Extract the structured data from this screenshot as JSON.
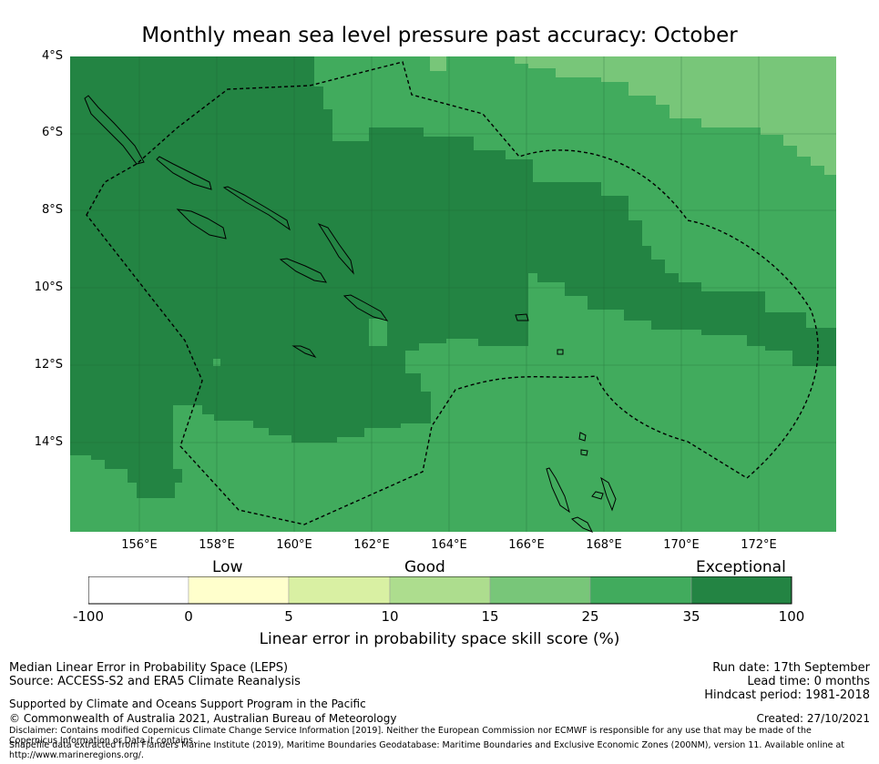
{
  "title": "Monthly mean sea level pressure past accuracy: October",
  "map": {
    "lat_labels": [
      "4°S",
      "6°S",
      "8°S",
      "10°S",
      "12°S",
      "14°S"
    ],
    "lon_labels": [
      "156°E",
      "158°E",
      "160°E",
      "162°E",
      "164°E",
      "166°E",
      "168°E",
      "170°E",
      "172°E"
    ],
    "extent": {
      "lon_min": 154.2,
      "lon_max": 174.0,
      "lat_min": -16.5,
      "lat_max": -4.0
    }
  },
  "legend": {
    "categories": [
      "Low",
      "Good",
      "Exceptional"
    ],
    "ticks": [
      "-100",
      "0",
      "5",
      "10",
      "15",
      "25",
      "35",
      "100"
    ],
    "colors": [
      "#ffffff",
      "#ffffcc",
      "#d9f0a3",
      "#addd8e",
      "#78c679",
      "#41ab5d",
      "#238443"
    ],
    "title": "Linear error in probability space skill score (%)"
  },
  "footer": {
    "line1": "Median Linear Error in Probability Space (LEPS)",
    "line2": "Source: ACCESS-S2 and ERA5 Climate Reanalysis",
    "line3": "Supported by Climate and Oceans Support Program in the Pacific",
    "line4": "© Commonwealth of Australia 2021, Australian Bureau of Meteorology",
    "disclaimer": "Disclaimer: Contains modified Copernicus Climate Change Service Information [2019]. Neither the European Commission nor ECMWF is responsible for any use that may be made of the Copernicus Information or Data it contains.",
    "shapefile": "Shapefile data extracted from Flanders Marine Institute (2019), Maritime Boundaries Geodatabase: Maritime Boundaries and Exclusive Economic Zones (200NM), version 11. Available online at http://www.marineregions.org/.",
    "run_date": "Run date: 17th September",
    "lead_time": "Lead time: 0 months",
    "hindcast": "Hindcast period: 1981-2018",
    "created": "Created: 27/10/2021"
  }
}
